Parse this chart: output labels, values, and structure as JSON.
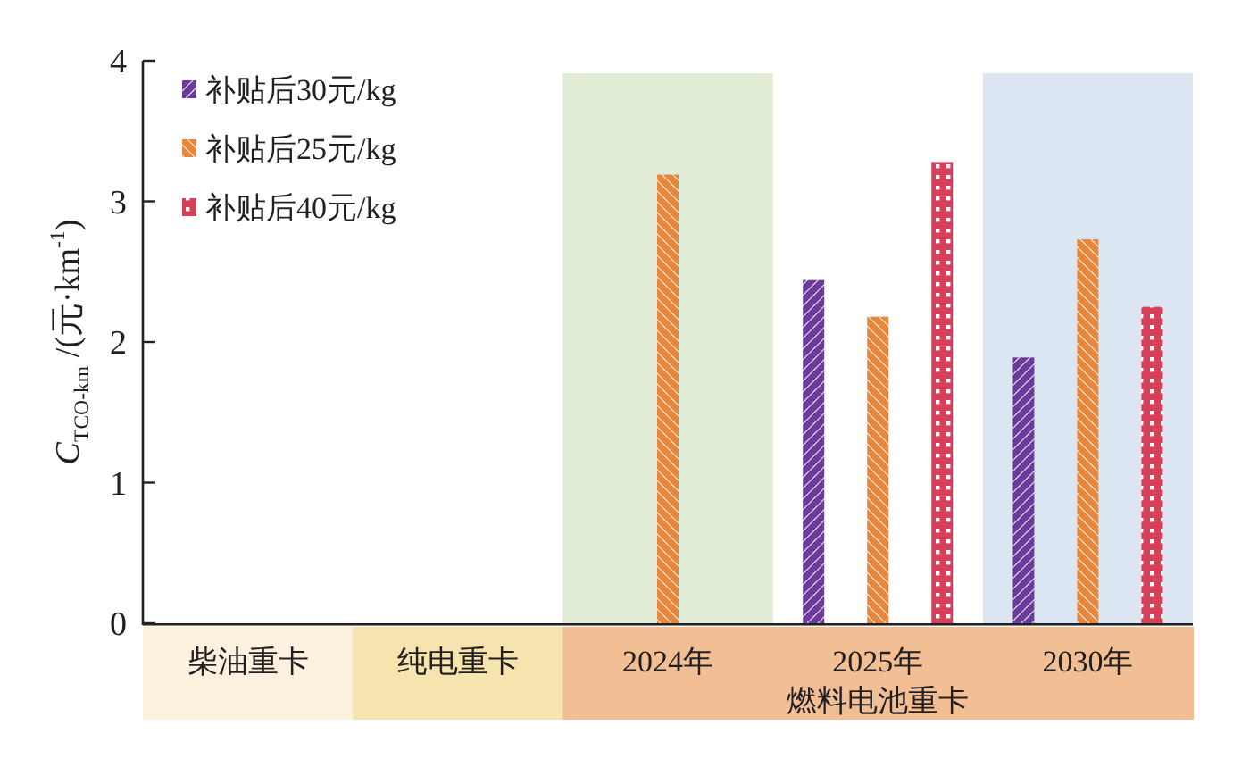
{
  "chart_data": {
    "type": "bar",
    "ylabel": "*C*$_{TCO-km}$ /(元·km$^{-1}$)",
    "categories": [
      "柴油重卡",
      "纯电重卡",
      "2024年",
      "2025年",
      "2030年"
    ],
    "series": [
      {
        "name": "补贴后30元/kg",
        "color": "#6a3b9c",
        "values": [
          null,
          null,
          null,
          2.44,
          1.89
        ]
      },
      {
        "name": "补贴后25元/kg",
        "color": "#e8863a",
        "values": [
          null,
          null,
          3.19,
          2.18,
          2.73
        ]
      },
      {
        "name": "补贴后40元/kg",
        "color": "#d8405a",
        "values": [
          null,
          null,
          null,
          3.28,
          2.25
        ]
      }
    ],
    "ylim": [
      0,
      4
    ],
    "yticks": [
      0,
      1,
      2,
      3,
      4
    ],
    "legend": "top left",
    "bands": [
      {
        "axis": "x",
        "from": "2024年",
        "to": "2024年",
        "color": "#e0ecd6"
      },
      {
        "axis": "x",
        "from": "2030年",
        "to": "2030年",
        "color": "#dbe6f2"
      }
    ],
    "annotations": [
      "燃料电池重卡"
    ]
  }
}
